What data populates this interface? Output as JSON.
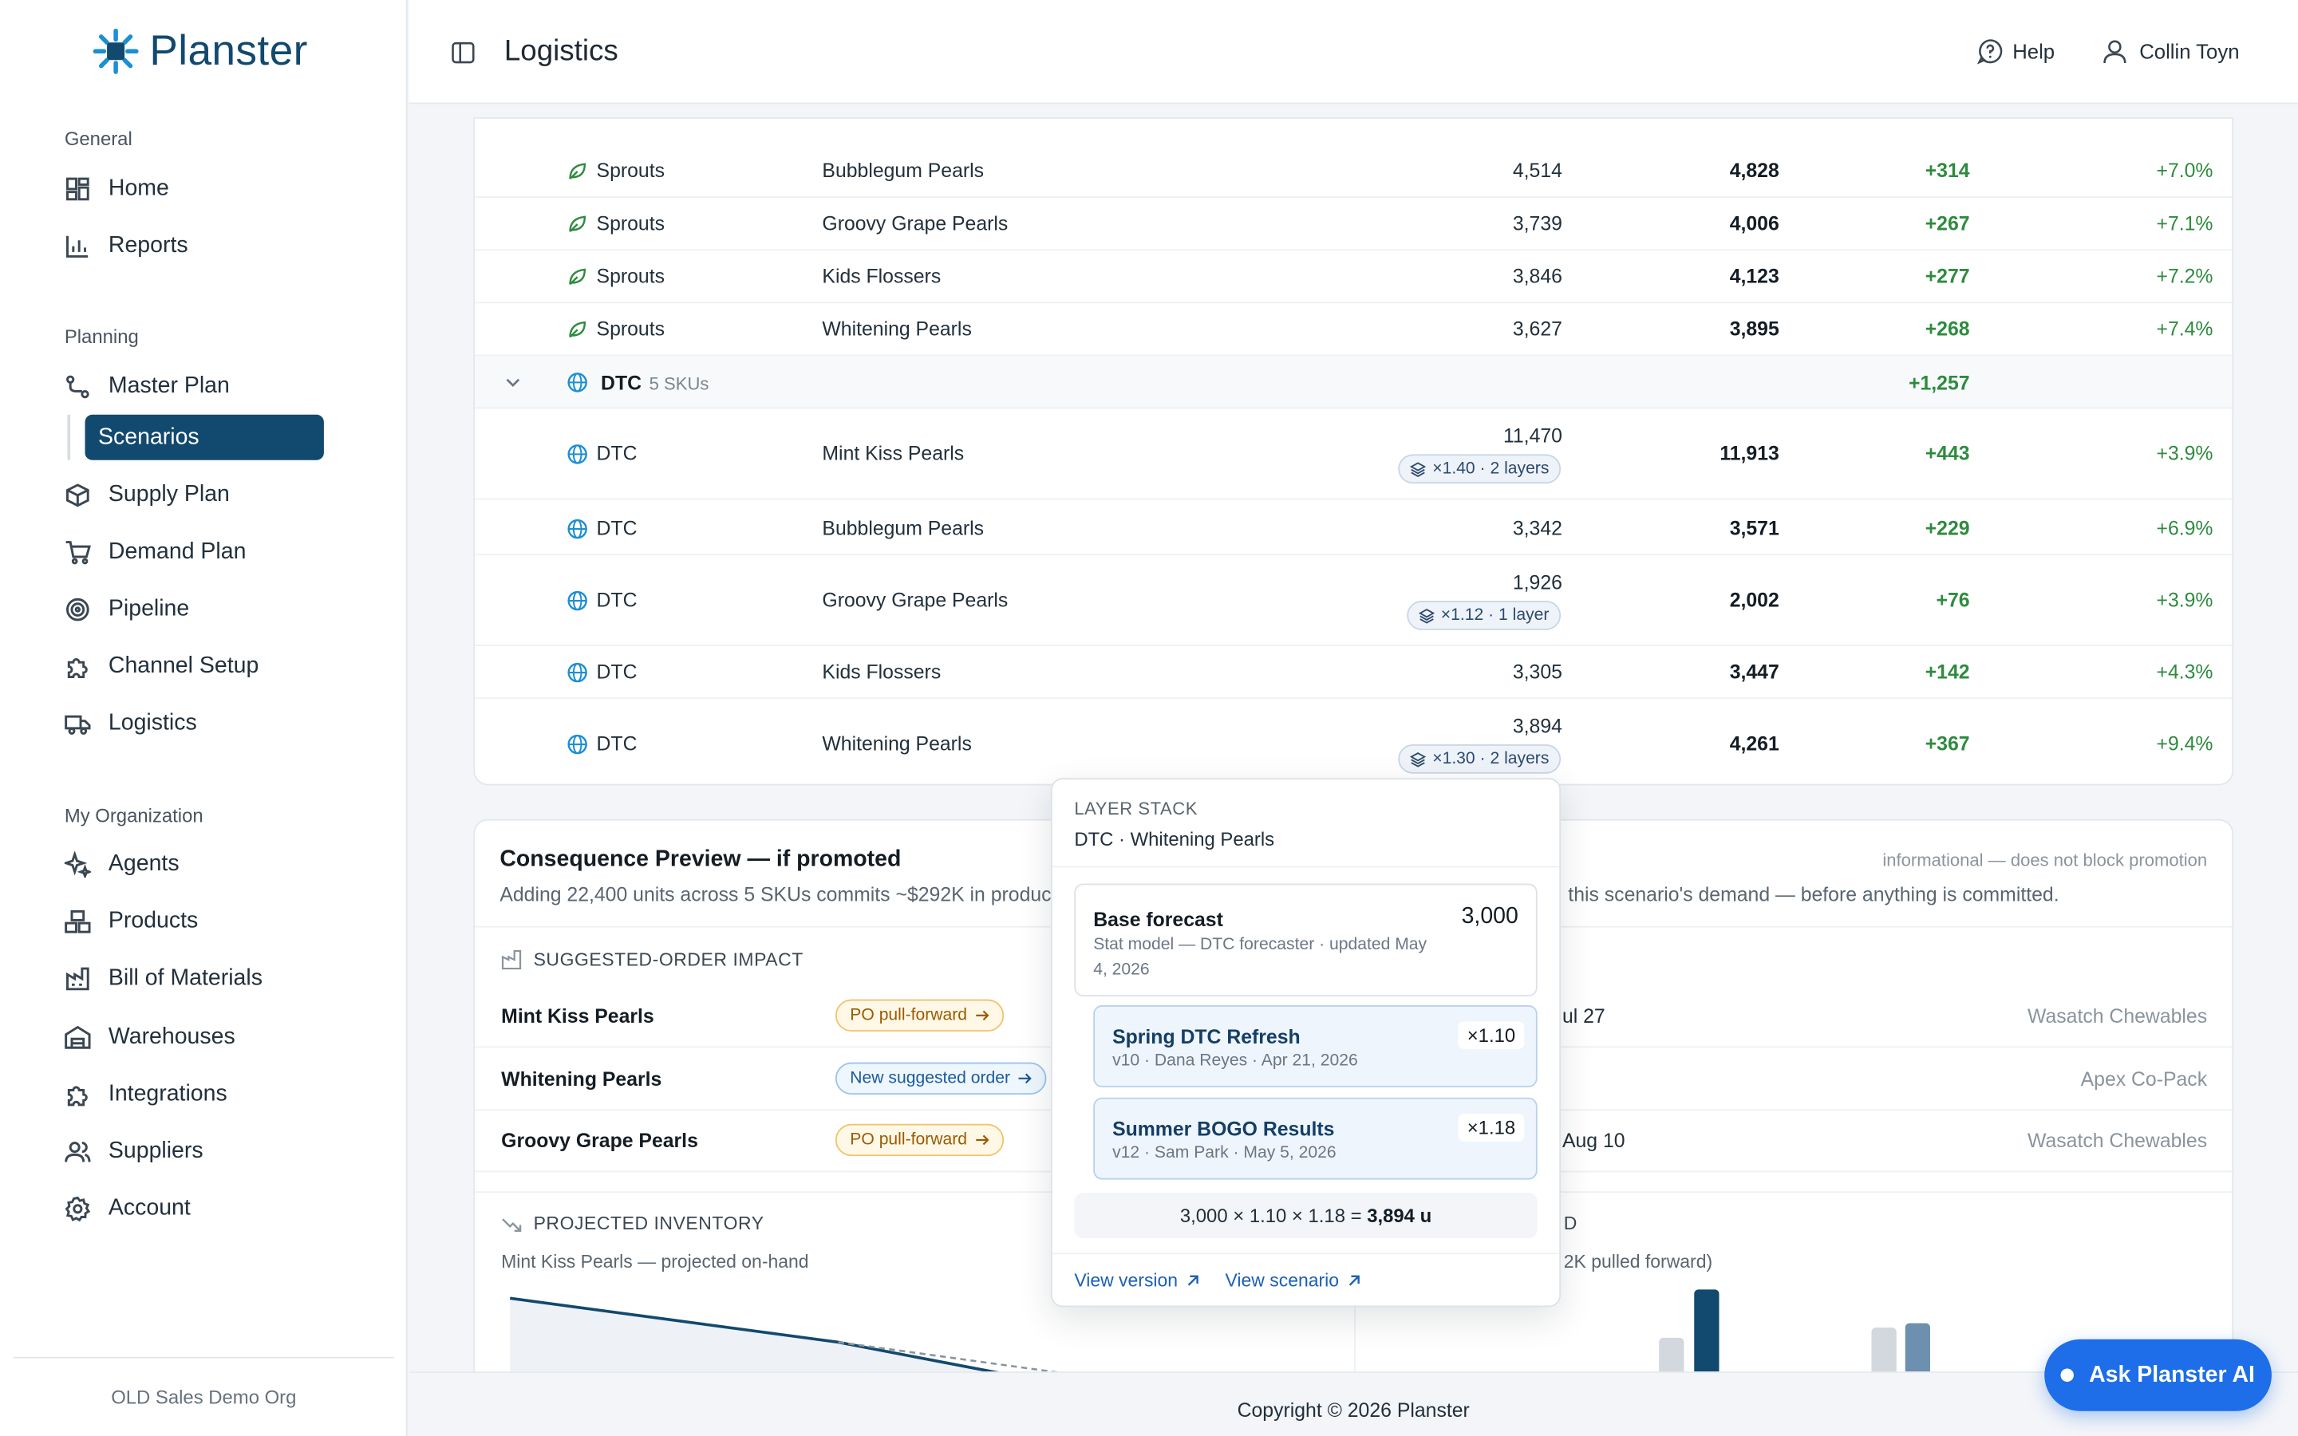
{
  "app": {
    "brand": "Planster",
    "page_title": "Logistics",
    "org": "OLD Sales Demo Org",
    "copyright": "Copyright © 2026 Planster"
  },
  "header": {
    "help": "Help",
    "user": "Collin Toyn"
  },
  "sidebar": {
    "sections": [
      {
        "label": "General",
        "items": [
          {
            "label": "Home",
            "icon": "home-icon"
          },
          {
            "label": "Reports",
            "icon": "bar-chart-icon"
          }
        ]
      },
      {
        "label": "Planning",
        "items": [
          {
            "label": "Master Plan",
            "icon": "route-icon"
          },
          {
            "label": "Scenarios",
            "active": true
          },
          {
            "label": "Supply Plan",
            "icon": "box-icon"
          },
          {
            "label": "Demand Plan",
            "icon": "cart-icon"
          },
          {
            "label": "Pipeline",
            "icon": "target-icon"
          },
          {
            "label": "Channel Setup",
            "icon": "puzzle-icon"
          },
          {
            "label": "Logistics",
            "icon": "truck-icon"
          }
        ]
      },
      {
        "label": "My Organization",
        "items": [
          {
            "label": "Agents",
            "icon": "sparkles-icon"
          },
          {
            "label": "Products",
            "icon": "boxes-icon"
          },
          {
            "label": "Bill of Materials",
            "icon": "factory-icon"
          },
          {
            "label": "Warehouses",
            "icon": "warehouse-icon"
          },
          {
            "label": "Integrations",
            "icon": "integrations-icon"
          },
          {
            "label": "Suppliers",
            "icon": "users-icon"
          },
          {
            "label": "Account",
            "icon": "gear-icon"
          }
        ]
      }
    ]
  },
  "table": {
    "rows": [
      {
        "channel": "Sprouts",
        "sku": "Bubblegum Pearls",
        "base": "4,514",
        "scenario": "4,828",
        "delta": "+314",
        "pct": "+7.0%"
      },
      {
        "channel": "Sprouts",
        "sku": "Groovy Grape Pearls",
        "base": "3,739",
        "scenario": "4,006",
        "delta": "+267",
        "pct": "+7.1%"
      },
      {
        "channel": "Sprouts",
        "sku": "Kids Flossers",
        "base": "3,846",
        "scenario": "4,123",
        "delta": "+277",
        "pct": "+7.2%"
      },
      {
        "channel": "Sprouts",
        "sku": "Whitening Pearls",
        "base": "3,627",
        "scenario": "3,895",
        "delta": "+268",
        "pct": "+7.4%"
      }
    ],
    "group": {
      "name": "DTC",
      "count": "5 SKUs",
      "delta": "+1,257"
    },
    "dtc_rows": [
      {
        "channel": "DTC",
        "sku": "Mint Kiss Pearls",
        "base": "11,470",
        "chip": "×1.40 · 2 layers",
        "scenario": "11,913",
        "delta": "+443",
        "pct": "+3.9%"
      },
      {
        "channel": "DTC",
        "sku": "Bubblegum Pearls",
        "base": "3,342",
        "chip": "",
        "scenario": "3,571",
        "delta": "+229",
        "pct": "+6.9%"
      },
      {
        "channel": "DTC",
        "sku": "Groovy Grape Pearls",
        "base": "1,926",
        "chip": "×1.12 · 1 layer",
        "scenario": "2,002",
        "delta": "+76",
        "pct": "+3.9%"
      },
      {
        "channel": "DTC",
        "sku": "Kids Flossers",
        "base": "3,305",
        "chip": "",
        "scenario": "3,447",
        "delta": "+142",
        "pct": "+4.3%"
      },
      {
        "channel": "DTC",
        "sku": "Whitening Pearls",
        "base": "3,894",
        "chip": "×1.30 · 2 layers",
        "scenario": "4,261",
        "delta": "+367",
        "pct": "+9.4%"
      }
    ]
  },
  "consequence": {
    "title": "Consequence Preview — if promoted",
    "note": "informational — does not block promotion",
    "desc_left": "Adding 22,400 units across 5 SKUs commits ~$292K in production",
    "desc_right": "this scenario's demand — before anything is committed.",
    "impact_header": "SUGGESTED-ORDER IMPACT",
    "impacts": [
      {
        "sku": "Mint Kiss Pearls",
        "action": "PO pull-forward",
        "kind": "orange",
        "date": "ul 27",
        "supplier": "Wasatch Chewables"
      },
      {
        "sku": "Whitening Pearls",
        "action": "New suggested order",
        "kind": "blue",
        "date": "",
        "supplier": "Apex Co-Pack"
      },
      {
        "sku": "Groovy Grape Pearls",
        "action": "PO pull-forward",
        "kind": "orange",
        "date": "Aug 10",
        "supplier": "Wasatch Chewables"
      }
    ],
    "inventory_header": "PROJECTED INVENTORY",
    "inventory_sub": "Mint Kiss Pearls — projected on-hand",
    "right_header_frag": "D",
    "right_sub_frag": "2K pulled forward)"
  },
  "popover": {
    "label": "LAYER STACK",
    "subtitle": "DTC · Whitening Pearls",
    "base_title": "Base forecast",
    "base_value": "3,000",
    "base_meta": "Stat model — DTC forecaster · updated May 4, 2026",
    "layers": [
      {
        "title": "Spring DTC Refresh",
        "meta": "v10 · Dana Reyes · Apr 21, 2026",
        "mult": "×1.10"
      },
      {
        "title": "Summer BOGO Results",
        "meta": "v12 · Sam Park · May 5, 2026",
        "mult": "×1.18"
      }
    ],
    "formula_prefix": "3,000 × 1.10 × 1.18 = ",
    "formula_result": "3,894 u",
    "link_version": "View version",
    "link_scenario": "View scenario"
  },
  "ask_ai": "Ask Planster AI"
}
